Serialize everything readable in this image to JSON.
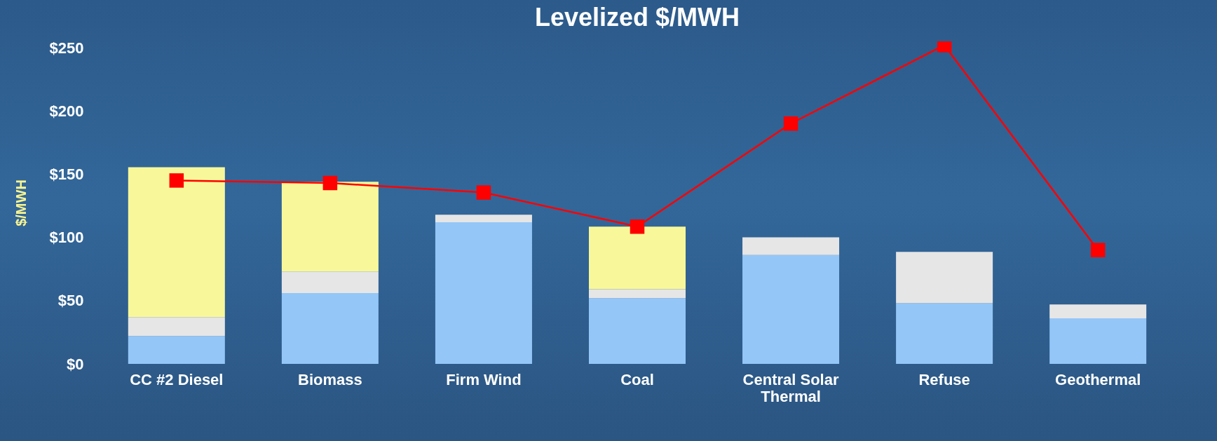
{
  "chart_data": {
    "type": "bar",
    "title": "Levelized $/MWH",
    "ylabel": "$/MWH",
    "stacked": true,
    "marker": "square",
    "grid": false,
    "legend": false,
    "categories": [
      "CC #2  Diesel",
      "Biomass",
      "Firm Wind",
      "Coal",
      "Central Solar Thermal",
      "Refuse",
      "Geothermal"
    ],
    "series": [
      {
        "color": "#94c6f8",
        "values": [
          22,
          56,
          112,
          52,
          86,
          48,
          36
        ]
      },
      {
        "color": "#e6e6e6",
        "values": [
          15,
          17,
          6,
          7,
          14,
          40.5,
          11
        ]
      },
      {
        "color": "#f8f89a",
        "values": [
          118.5,
          71,
          0,
          49.5,
          0,
          0,
          0
        ]
      },
      {
        "type": "line",
        "color": "#ff0000",
        "values": [
          145,
          143,
          135.5,
          108.5,
          190,
          252,
          90
        ]
      }
    ],
    "ylim": [
      0,
      255
    ],
    "yticks": [
      {
        "value": 0,
        "label": "$0"
      },
      {
        "value": 50,
        "label": "$50"
      },
      {
        "value": 100,
        "label": "$100"
      },
      {
        "value": 150,
        "label": "$150"
      },
      {
        "value": 200,
        "label": "$200"
      },
      {
        "value": 250,
        "label": "$250"
      }
    ]
  }
}
